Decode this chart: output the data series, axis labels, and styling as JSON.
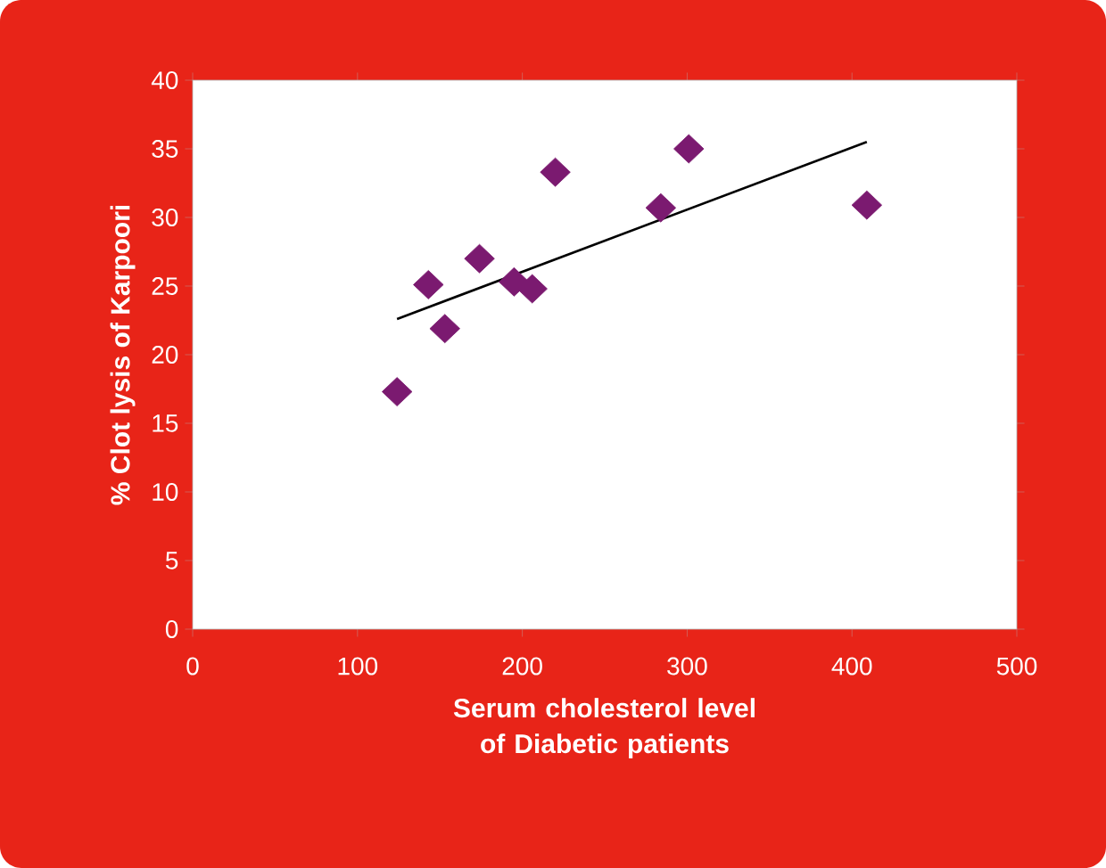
{
  "chart_data": {
    "type": "scatter",
    "xlabel": "Serum cholesterol level of Diabetic patients",
    "ylabel": "% Clot lysis of Karpoori",
    "xlim": [
      0,
      500
    ],
    "xticks": [
      0,
      100,
      200,
      300,
      400,
      500
    ],
    "ylim": [
      0,
      40
    ],
    "yticks": [
      0,
      5,
      10,
      15,
      20,
      25,
      30,
      35,
      40
    ],
    "marker": "diamond",
    "series": [
      {
        "color": "#7b1a70",
        "x": [
          124,
          143,
          153,
          174,
          195,
          206,
          220,
          284,
          301,
          409
        ],
        "values": [
          17.3,
          25.1,
          21.9,
          27.0,
          25.3,
          24.8,
          33.3,
          30.7,
          35.0,
          30.9
        ]
      },
      {
        "type": "line",
        "color": "#000000",
        "marker": "none",
        "x": [
          124,
          409
        ],
        "values": [
          22.6,
          35.5
        ]
      }
    ]
  }
}
